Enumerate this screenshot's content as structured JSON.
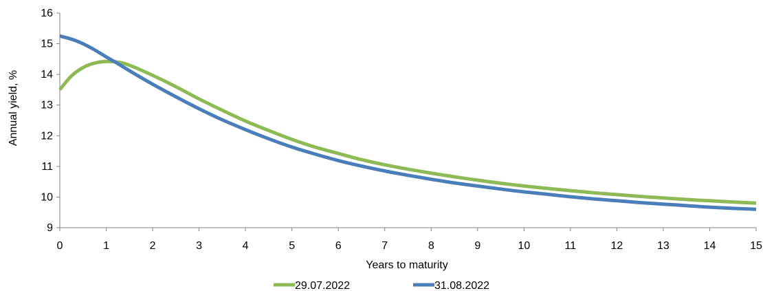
{
  "chart_data": {
    "type": "line",
    "title": "",
    "xlabel": "Years to maturity",
    "ylabel": "Annual yield, %",
    "xlim": [
      0,
      15
    ],
    "ylim": [
      9,
      16
    ],
    "x_ticks": [
      "0",
      "1",
      "2",
      "3",
      "4",
      "5",
      "6",
      "7",
      "8",
      "9",
      "10",
      "11",
      "12",
      "13",
      "14",
      "15"
    ],
    "y_ticks": [
      "9",
      "10",
      "11",
      "12",
      "13",
      "14",
      "15",
      "16"
    ],
    "grid": false,
    "legend_position": "bottom",
    "series": [
      {
        "name": "29.07.2022",
        "color": "#8DBA55",
        "x": [
          0,
          0.25,
          0.5,
          0.75,
          1,
          1.25,
          1.5,
          2,
          2.5,
          3,
          3.5,
          4,
          4.5,
          5,
          5.5,
          6,
          6.5,
          7,
          7.5,
          8,
          8.5,
          9,
          9.5,
          10,
          10.5,
          11,
          11.5,
          12,
          12.5,
          13,
          13.5,
          14,
          14.5,
          15
        ],
        "y": [
          13.5,
          13.95,
          14.22,
          14.37,
          14.42,
          14.4,
          14.3,
          13.97,
          13.6,
          13.2,
          12.83,
          12.48,
          12.17,
          11.88,
          11.63,
          11.42,
          11.22,
          11.05,
          10.91,
          10.78,
          10.66,
          10.55,
          10.45,
          10.36,
          10.28,
          10.21,
          10.14,
          10.08,
          10.02,
          9.97,
          9.92,
          9.88,
          9.84,
          9.8
        ]
      },
      {
        "name": "31.08.2022",
        "color": "#4A7EBB",
        "x": [
          0,
          0.25,
          0.5,
          0.75,
          1,
          1.25,
          1.5,
          2,
          2.5,
          3,
          3.5,
          4,
          4.5,
          5,
          5.5,
          6,
          6.5,
          7,
          7.5,
          8,
          8.5,
          9,
          9.5,
          10,
          10.5,
          11,
          11.5,
          12,
          12.5,
          13,
          13.5,
          14,
          14.5,
          15
        ],
        "y": [
          15.25,
          15.15,
          15.0,
          14.8,
          14.57,
          14.35,
          14.12,
          13.68,
          13.27,
          12.88,
          12.52,
          12.2,
          11.9,
          11.63,
          11.4,
          11.19,
          11.01,
          10.85,
          10.71,
          10.58,
          10.46,
          10.36,
          10.26,
          10.17,
          10.09,
          10.01,
          9.94,
          9.88,
          9.82,
          9.77,
          9.72,
          9.67,
          9.63,
          9.6
        ]
      }
    ]
  }
}
